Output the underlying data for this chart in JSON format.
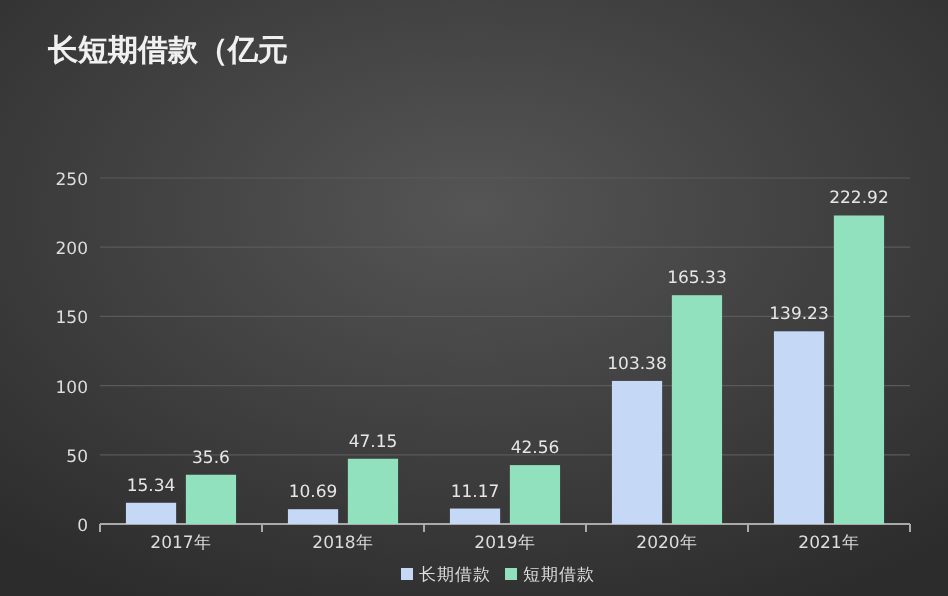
{
  "chart_data": {
    "type": "bar",
    "title": "长短期借款（亿元",
    "categories": [
      "2017年",
      "2018年",
      "2019年",
      "2020年",
      "2021年"
    ],
    "series": [
      {
        "name": "长期借款",
        "color": "#c5d9f7",
        "values": [
          15.34,
          10.69,
          11.17,
          103.38,
          139.23
        ]
      },
      {
        "name": "短期借款",
        "color": "#91e0be",
        "values": [
          35.6,
          47.15,
          42.56,
          165.33,
          222.92
        ]
      }
    ],
    "ylim": [
      0,
      250
    ],
    "yticks": [
      0,
      50,
      100,
      150,
      200,
      250
    ],
    "grid": "y",
    "legend": "bottom",
    "data_labels": true
  }
}
